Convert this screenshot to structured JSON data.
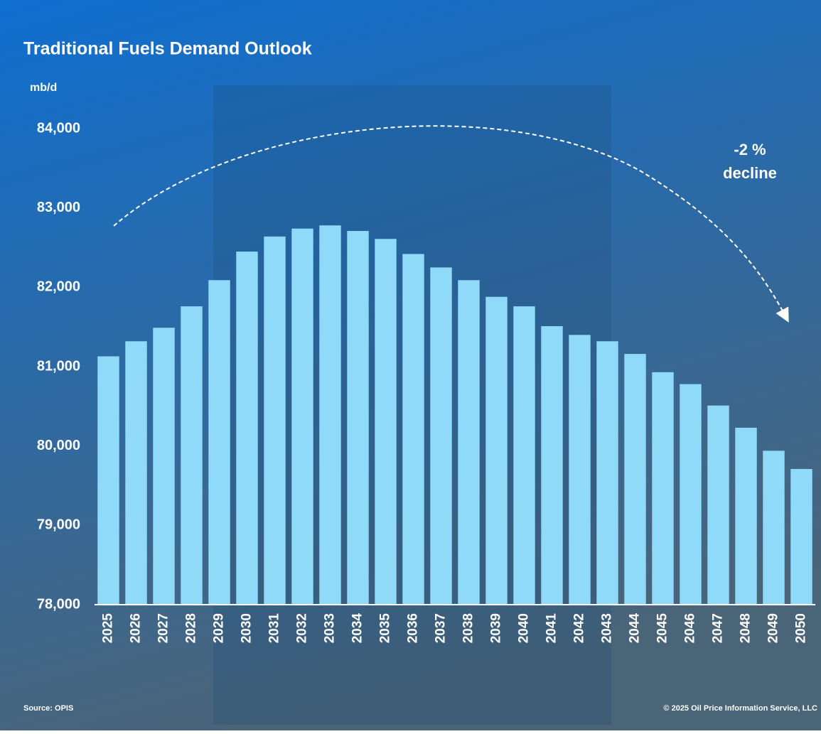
{
  "chart_data": {
    "type": "bar",
    "title": "Traditional Fuels Demand Outlook",
    "y_label": "mb/d",
    "categories": [
      "2025",
      "2026",
      "2027",
      "2028",
      "2029",
      "2030",
      "2031",
      "2032",
      "2033",
      "2034",
      "2035",
      "2036",
      "2037",
      "2038",
      "2039",
      "2040",
      "2041",
      "2042",
      "2043",
      "2044",
      "2045",
      "2046",
      "2047",
      "2048",
      "2049",
      "2050"
    ],
    "values": [
      81130,
      81320,
      81490,
      81760,
      82090,
      82450,
      82640,
      82740,
      82780,
      82710,
      82610,
      82420,
      82250,
      82090,
      81880,
      81760,
      81510,
      81400,
      81320,
      81160,
      80930,
      80780,
      80510,
      80230,
      79940,
      79710
    ],
    "color": "#8fdaf8",
    "ylim": [
      78000,
      84000
    ],
    "yticks": [
      {
        "value": 78000,
        "label": "78,000"
      },
      {
        "value": 79000,
        "label": "79,000"
      },
      {
        "value": 80000,
        "label": "80,000"
      },
      {
        "value": 81000,
        "label": "81,000"
      },
      {
        "value": 82000,
        "label": "82,000"
      },
      {
        "value": 83000,
        "label": "83,000"
      },
      {
        "value": 84000,
        "label": "84,000"
      }
    ],
    "grid": false,
    "annotation": [
      "-2 %",
      "decline"
    ],
    "source": "Source: OPIS",
    "copyright": "© 2025 Oil Price Information Service, LLC"
  }
}
